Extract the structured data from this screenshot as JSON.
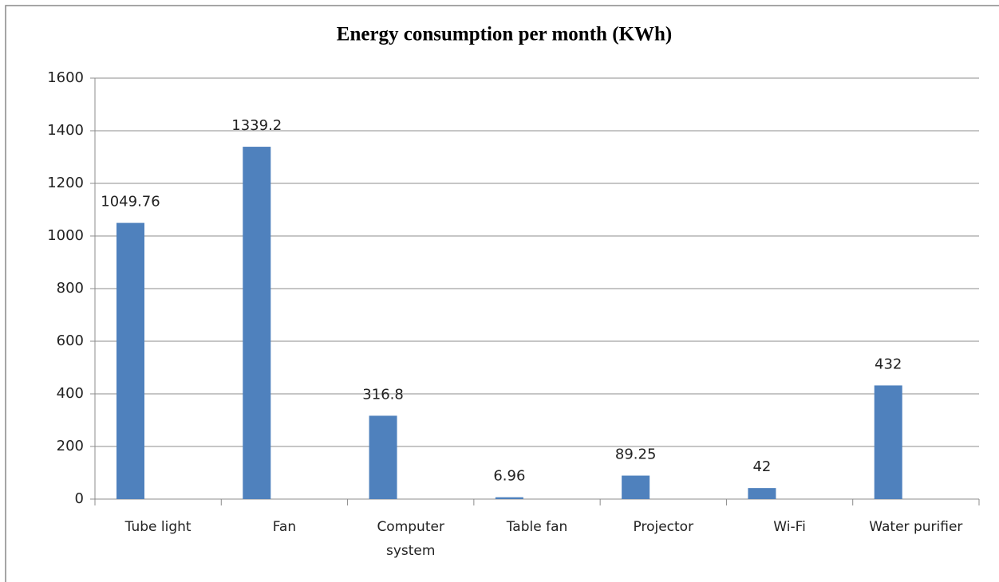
{
  "chart_data": {
    "type": "bar",
    "title": "Energy consumption per month (KWh)",
    "categories": [
      "Tube light",
      "Fan",
      "Computer system",
      "Table fan",
      "Projector",
      "Wi-Fi",
      "Water purifier"
    ],
    "values": [
      1049.76,
      1339.2,
      316.8,
      6.96,
      89.25,
      42,
      432
    ],
    "color": "#4f81bd",
    "ylim": [
      0,
      1600
    ],
    "yticks": [
      0,
      200,
      400,
      600,
      800,
      1000,
      1200,
      1400,
      1600
    ],
    "grid": true
  }
}
